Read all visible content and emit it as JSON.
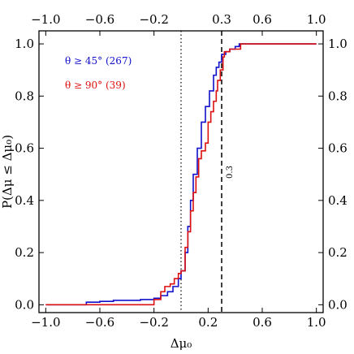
{
  "chart_data": {
    "type": "line",
    "subtype": "step-cdf",
    "xlabel": "Δμ₀",
    "ylabel": "P(Δμ ≤ Δμ₀)",
    "xlim": [
      -1.05,
      1.05
    ],
    "ylim": [
      -0.03,
      1.05
    ],
    "x_ticks": [
      -1.0,
      -0.6,
      -0.2,
      0.2,
      0.6,
      1.0
    ],
    "x_tick_labels": [
      "−1.0",
      "−0.6",
      "−0.2",
      "0.2",
      "0.6",
      "1.0"
    ],
    "x_top_ticks": [
      -1.0,
      -0.6,
      -0.2,
      0.3,
      0.6,
      1.0
    ],
    "x_top_tick_labels": [
      "−1.0",
      "−0.6",
      "−0.2",
      "0.3",
      "0.6",
      "1.0"
    ],
    "y_ticks": [
      0.0,
      0.2,
      0.4,
      0.6,
      0.8,
      1.0
    ],
    "y_tick_labels": [
      "0.0",
      "0.2",
      "0.4",
      "0.6",
      "0.8",
      "1.0"
    ],
    "grid": false,
    "legend_position": "top-left",
    "series": [
      {
        "name": "θ ≥ 45°  (267)",
        "color": "#1010cc",
        "x": [
          -1.0,
          -0.7,
          -0.6,
          -0.5,
          -0.3,
          -0.2,
          -0.15,
          -0.1,
          -0.06,
          -0.02,
          0.0,
          0.03,
          0.05,
          0.07,
          0.09,
          0.12,
          0.15,
          0.18,
          0.21,
          0.24,
          0.26,
          0.28,
          0.3,
          0.33,
          0.36,
          0.4,
          0.43,
          1.0
        ],
        "y": [
          0.0,
          0.01,
          0.013,
          0.017,
          0.02,
          0.025,
          0.035,
          0.05,
          0.07,
          0.1,
          0.13,
          0.2,
          0.3,
          0.4,
          0.5,
          0.6,
          0.7,
          0.76,
          0.82,
          0.88,
          0.91,
          0.93,
          0.96,
          0.97,
          0.98,
          0.99,
          1.0,
          1.0
        ]
      },
      {
        "name": "θ ≥ 90°  (39)",
        "color": "#dd1010",
        "x": [
          -1.0,
          -0.75,
          -0.2,
          -0.15,
          -0.12,
          -0.08,
          -0.05,
          -0.02,
          0.0,
          0.03,
          0.05,
          0.07,
          0.09,
          0.11,
          0.13,
          0.15,
          0.18,
          0.2,
          0.22,
          0.24,
          0.26,
          0.27,
          0.29,
          0.31,
          0.32,
          0.36,
          0.41,
          0.44,
          1.0
        ],
        "y": [
          0.0,
          0.0,
          0.02,
          0.05,
          0.07,
          0.08,
          0.1,
          0.12,
          0.13,
          0.22,
          0.28,
          0.36,
          0.43,
          0.49,
          0.56,
          0.59,
          0.62,
          0.7,
          0.74,
          0.78,
          0.82,
          0.86,
          0.9,
          0.95,
          0.97,
          0.98,
          0.98,
          1.0,
          1.0
        ]
      }
    ],
    "reference_lines": [
      {
        "x": 0.0,
        "style": "dotted",
        "label": ""
      },
      {
        "x": 0.3,
        "style": "dashed",
        "label": "0.3"
      }
    ]
  }
}
